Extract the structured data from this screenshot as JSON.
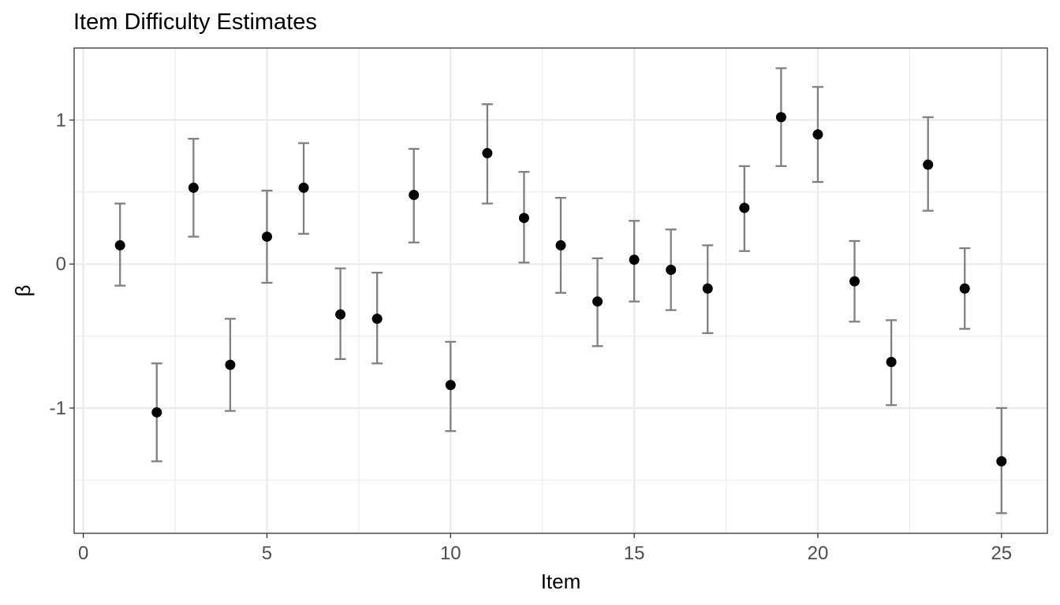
{
  "chart_data": {
    "type": "scatter",
    "title": "Item Difficulty Estimates",
    "xlabel": "Item",
    "ylabel": "β",
    "xlim": [
      -0.25,
      26.25
    ],
    "ylim": [
      -1.87,
      1.5
    ],
    "x_ticks": [
      0,
      5,
      10,
      15,
      20,
      25
    ],
    "x_tick_labels": [
      "0",
      "5",
      "10",
      "15",
      "20",
      "25"
    ],
    "y_ticks": [
      -1,
      0,
      1
    ],
    "y_tick_labels": [
      "-1",
      "0",
      "1"
    ],
    "grid": true,
    "error_bars": true,
    "series": [
      {
        "x": [
          1,
          2,
          3,
          4,
          5,
          6,
          7,
          8,
          9,
          10,
          11,
          12,
          13,
          14,
          15,
          16,
          17,
          18,
          19,
          20,
          21,
          22,
          23,
          24,
          25
        ],
        "y": [
          0.13,
          -1.03,
          0.53,
          -0.7,
          0.19,
          0.53,
          -0.35,
          -0.38,
          0.48,
          -0.84,
          0.77,
          0.32,
          0.13,
          -0.26,
          0.03,
          -0.04,
          -0.17,
          0.39,
          1.02,
          0.9,
          -0.12,
          -0.68,
          0.69,
          -0.17,
          -1.37
        ],
        "lower": [
          -0.15,
          -1.37,
          0.19,
          -1.02,
          -0.13,
          0.21,
          -0.66,
          -0.69,
          0.15,
          -1.16,
          0.42,
          0.01,
          -0.2,
          -0.57,
          -0.26,
          -0.32,
          -0.48,
          0.09,
          0.68,
          0.57,
          -0.4,
          -0.98,
          0.37,
          -0.45,
          -1.73
        ],
        "upper": [
          0.42,
          -0.69,
          0.87,
          -0.38,
          0.51,
          0.84,
          -0.03,
          -0.06,
          0.8,
          -0.54,
          1.11,
          0.64,
          0.46,
          0.04,
          0.3,
          0.24,
          0.13,
          0.68,
          1.36,
          1.23,
          0.16,
          -0.39,
          1.02,
          0.11,
          -1.0
        ],
        "color": "#000000",
        "errbar_color": "#808080"
      }
    ]
  }
}
